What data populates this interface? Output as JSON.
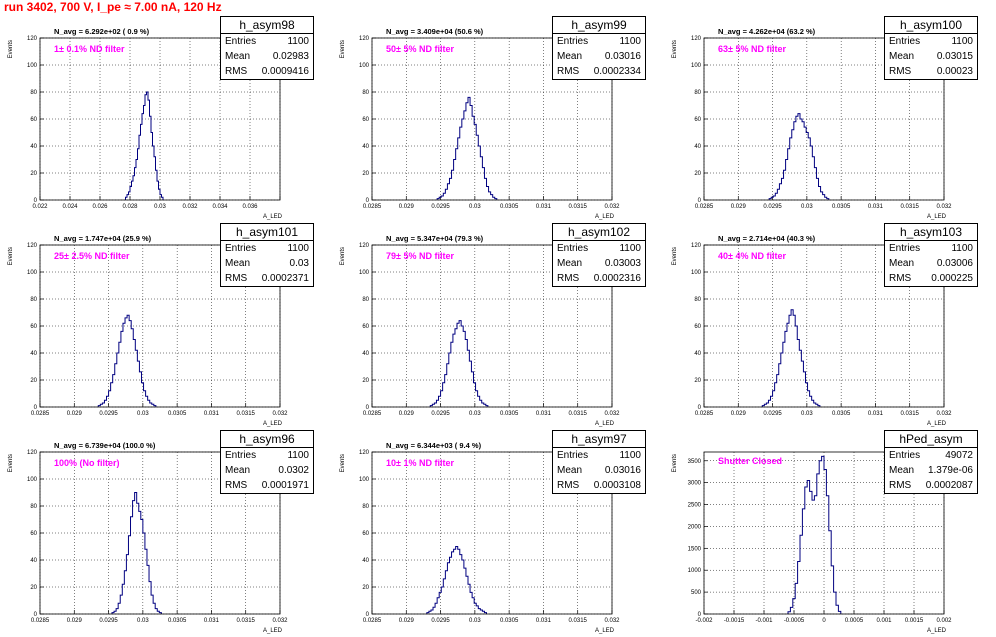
{
  "run_title": "run 3402,   700 V, I_pe ≈ 7.00 nA, 120 Hz",
  "chart_data": [
    {
      "type": "bar",
      "name": "h_asym98",
      "navg": "N_avg = 6.292e+02 ( 0.9 %)",
      "filter": "1± 0.1% ND filter",
      "xlabel": "A_LED",
      "ylabel": "Events",
      "xlim": [
        0.022,
        0.038
      ],
      "ylim": [
        0,
        120
      ],
      "xticks": [
        0.022,
        0.024,
        0.026,
        0.028,
        0.03,
        0.032,
        0.034,
        0.036,
        0.038
      ],
      "xtick_labels": [
        "0.022",
        "0.024",
        "0.026",
        "0.028",
        "0.03",
        "0.032",
        "0.034",
        "0.036",
        ""
      ],
      "yticks": [
        0,
        20,
        40,
        60,
        80,
        100,
        120
      ],
      "stats": [
        [
          "Entries",
          "1100"
        ],
        [
          "Mean",
          "0.02983"
        ],
        [
          "RMS",
          "0.0009416"
        ]
      ],
      "bin_start": 0.0277,
      "bin_width": 0.0001,
      "values": [
        2,
        4,
        6,
        10,
        14,
        18,
        24,
        30,
        38,
        48,
        56,
        64,
        70,
        78,
        80,
        74,
        62,
        50,
        40,
        32,
        22,
        14,
        8,
        4,
        2
      ]
    },
    {
      "type": "bar",
      "name": "h_asym99",
      "navg": "N_avg = 3.409e+04 (50.6 %)",
      "filter": "50± 5% ND filter",
      "xlabel": "A_LED",
      "ylabel": "Events",
      "xlim": [
        0.0285,
        0.032
      ],
      "ylim": [
        0,
        120
      ],
      "xticks": [
        0.0285,
        0.029,
        0.0295,
        0.03,
        0.0305,
        0.031,
        0.0315,
        0.032
      ],
      "xtick_labels": [
        "0.0285",
        "0.029",
        "0.0295",
        "0.03",
        "0.0305",
        "0.031",
        "0.0315",
        "0.032"
      ],
      "yticks": [
        0,
        20,
        40,
        60,
        80,
        100,
        120
      ],
      "stats": [
        [
          "Entries",
          "1100"
        ],
        [
          "Mean",
          "0.03016"
        ],
        [
          "RMS",
          "0.0002334"
        ]
      ],
      "bin_start": 0.02945,
      "bin_width": 3e-05,
      "values": [
        1,
        2,
        3,
        5,
        8,
        12,
        16,
        22,
        30,
        38,
        46,
        54,
        60,
        66,
        72,
        76,
        70,
        62,
        56,
        48,
        40,
        32,
        24,
        16,
        10,
        6,
        4,
        2,
        1
      ]
    },
    {
      "type": "bar",
      "name": "h_asym100",
      "navg": "N_avg = 4.262e+04 (63.2 %)",
      "filter": "63± 5% ND filter",
      "xlabel": "A_LED",
      "ylabel": "Events",
      "xlim": [
        0.0285,
        0.032
      ],
      "ylim": [
        0,
        120
      ],
      "xticks": [
        0.0285,
        0.029,
        0.0295,
        0.03,
        0.0305,
        0.031,
        0.0315,
        0.032
      ],
      "xtick_labels": [
        "0.0285",
        "0.029",
        "0.0295",
        "0.03",
        "0.0305",
        "0.031",
        "0.0315",
        "0.032"
      ],
      "yticks": [
        0,
        20,
        40,
        60,
        80,
        100,
        120
      ],
      "stats": [
        [
          "Entries",
          "1100"
        ],
        [
          "Mean",
          "0.03015"
        ],
        [
          "RMS",
          "0.00023"
        ]
      ],
      "bin_start": 0.02945,
      "bin_width": 3e-05,
      "values": [
        1,
        2,
        3,
        5,
        8,
        12,
        16,
        22,
        30,
        38,
        46,
        52,
        58,
        62,
        64,
        60,
        58,
        54,
        50,
        46,
        40,
        32,
        24,
        16,
        10,
        6,
        4,
        2,
        1
      ]
    },
    {
      "type": "bar",
      "name": "h_asym101",
      "navg": "N_avg = 1.747e+04 (25.9 %)",
      "filter": "25± 2.5% ND filter",
      "xlabel": "A_LED",
      "ylabel": "Events",
      "xlim": [
        0.0285,
        0.032
      ],
      "ylim": [
        0,
        120
      ],
      "xticks": [
        0.0285,
        0.029,
        0.0295,
        0.03,
        0.0305,
        0.031,
        0.0315,
        0.032
      ],
      "xtick_labels": [
        "0.0285",
        "0.029",
        "0.0295",
        "0.03",
        "0.0305",
        "0.031",
        "0.0315",
        "0.032"
      ],
      "yticks": [
        0,
        20,
        40,
        60,
        80,
        100,
        120
      ],
      "stats": [
        [
          "Entries",
          "1100"
        ],
        [
          "Mean",
          "0.03"
        ],
        [
          "RMS",
          "0.0002371"
        ]
      ],
      "bin_start": 0.02935,
      "bin_width": 3e-05,
      "values": [
        1,
        2,
        3,
        5,
        8,
        12,
        18,
        24,
        32,
        40,
        48,
        56,
        62,
        66,
        68,
        64,
        58,
        50,
        42,
        34,
        26,
        18,
        12,
        8,
        5,
        3,
        2,
        1
      ]
    },
    {
      "type": "bar",
      "name": "h_asym102",
      "navg": "N_avg = 5.347e+04 (79.3 %)",
      "filter": "79± 5% ND filter",
      "xlabel": "A_LED",
      "ylabel": "Events",
      "xlim": [
        0.0285,
        0.032
      ],
      "ylim": [
        0,
        120
      ],
      "xticks": [
        0.0285,
        0.029,
        0.0295,
        0.03,
        0.0305,
        0.031,
        0.0315,
        0.032
      ],
      "xtick_labels": [
        "0.0285",
        "0.029",
        "0.0295",
        "0.03",
        "0.0305",
        "0.031",
        "0.0315",
        "0.032"
      ],
      "yticks": [
        0,
        20,
        40,
        60,
        80,
        100,
        120
      ],
      "stats": [
        [
          "Entries",
          "1100"
        ],
        [
          "Mean",
          "0.03003"
        ],
        [
          "RMS",
          "0.0002316"
        ]
      ],
      "bin_start": 0.02935,
      "bin_width": 3e-05,
      "values": [
        1,
        2,
        3,
        5,
        8,
        12,
        18,
        24,
        32,
        40,
        48,
        54,
        58,
        62,
        64,
        60,
        56,
        50,
        42,
        34,
        26,
        18,
        12,
        8,
        5,
        3,
        2,
        1
      ]
    },
    {
      "type": "bar",
      "name": "h_asym103",
      "navg": "N_avg = 2.714e+04 (40.3 %)",
      "filter": "40± 4% ND filter",
      "xlabel": "A_LED",
      "ylabel": "Events",
      "xlim": [
        0.0285,
        0.032
      ],
      "ylim": [
        0,
        120
      ],
      "xticks": [
        0.0285,
        0.029,
        0.0295,
        0.03,
        0.0305,
        0.031,
        0.0315,
        0.032
      ],
      "xtick_labels": [
        "0.0285",
        "0.029",
        "0.0295",
        "0.03",
        "0.0305",
        "0.031",
        "0.0315",
        "0.032"
      ],
      "yticks": [
        0,
        20,
        40,
        60,
        80,
        100,
        120
      ],
      "stats": [
        [
          "Entries",
          "1100"
        ],
        [
          "Mean",
          "0.03006"
        ],
        [
          "RMS",
          "0.000225"
        ]
      ],
      "bin_start": 0.02935,
      "bin_width": 3e-05,
      "values": [
        1,
        2,
        3,
        5,
        8,
        12,
        18,
        24,
        32,
        40,
        48,
        56,
        62,
        68,
        72,
        68,
        60,
        50,
        42,
        34,
        26,
        18,
        12,
        8,
        5,
        3,
        2,
        1
      ]
    },
    {
      "type": "bar",
      "name": "h_asym96",
      "navg": "N_avg = 6.739e+04 (100.0 %)",
      "filter": "100% (No filter)",
      "xlabel": "A_LED",
      "ylabel": "Events",
      "xlim": [
        0.0285,
        0.032
      ],
      "ylim": [
        0,
        120
      ],
      "xticks": [
        0.0285,
        0.029,
        0.0295,
        0.03,
        0.0305,
        0.031,
        0.0315,
        0.032
      ],
      "xtick_labels": [
        "0.0285",
        "0.029",
        "0.0295",
        "0.03",
        "0.0305",
        "0.031",
        "0.0315",
        "0.032"
      ],
      "yticks": [
        0,
        20,
        40,
        60,
        80,
        100,
        120
      ],
      "stats": [
        [
          "Entries",
          "1100"
        ],
        [
          "Mean",
          "0.0302"
        ],
        [
          "RMS",
          "0.0001971"
        ]
      ],
      "bin_start": 0.02955,
      "bin_width": 3e-05,
      "values": [
        1,
        2,
        4,
        8,
        14,
        22,
        32,
        44,
        58,
        72,
        84,
        90,
        82,
        76,
        70,
        60,
        48,
        36,
        24,
        14,
        8,
        4,
        2,
        1
      ]
    },
    {
      "type": "bar",
      "name": "h_asym97",
      "navg": "N_avg = 6.344e+03 ( 9.4 %)",
      "filter": "10± 1% ND filter",
      "xlabel": "A_LED",
      "ylabel": "Events",
      "xlim": [
        0.0285,
        0.032
      ],
      "ylim": [
        0,
        120
      ],
      "xticks": [
        0.0285,
        0.029,
        0.0295,
        0.03,
        0.0305,
        0.031,
        0.0315,
        0.032
      ],
      "xtick_labels": [
        "0.0285",
        "0.029",
        "0.0295",
        "0.03",
        "0.0305",
        "0.031",
        "0.0315",
        "0.032"
      ],
      "yticks": [
        0,
        20,
        40,
        60,
        80,
        100,
        120
      ],
      "stats": [
        [
          "Entries",
          "1100"
        ],
        [
          "Mean",
          "0.03016"
        ],
        [
          "RMS",
          "0.0003108"
        ]
      ],
      "bin_start": 0.0293,
      "bin_width": 3e-05,
      "values": [
        1,
        2,
        3,
        5,
        8,
        12,
        16,
        20,
        26,
        32,
        38,
        42,
        46,
        48,
        50,
        48,
        44,
        40,
        34,
        28,
        22,
        16,
        12,
        8,
        6,
        4,
        3,
        2,
        1
      ]
    },
    {
      "type": "bar",
      "name": "hPed_asym",
      "navg": "",
      "filter": "Shutter Closed",
      "xlabel": "A_LED",
      "ylabel": "Events",
      "xlim": [
        -0.002,
        0.002
      ],
      "ylim": [
        0,
        3700
      ],
      "xticks": [
        -0.002,
        -0.0015,
        -0.001,
        -0.0005,
        0,
        0.0005,
        0.001,
        0.0015,
        0.002
      ],
      "xtick_labels": [
        "-0.002",
        "-0.0015",
        "-0.001",
        "-0.0005",
        "0",
        "0.0005",
        "0.001",
        "0.0015",
        "0.002"
      ],
      "yticks": [
        0,
        500,
        1000,
        1500,
        2000,
        2500,
        3000,
        3500
      ],
      "stats": [
        [
          "Entries",
          "49072"
        ],
        [
          "Mean",
          "1.379e-06"
        ],
        [
          "RMS",
          "0.0002087"
        ]
      ],
      "bin_start": -0.0006,
      "bin_width": 4e-05,
      "values": [
        50,
        150,
        350,
        700,
        1200,
        1800,
        2400,
        2900,
        3050,
        2800,
        2600,
        2700,
        3200,
        3500,
        3600,
        3300,
        2700,
        1900,
        1100,
        500,
        200,
        60
      ]
    }
  ]
}
